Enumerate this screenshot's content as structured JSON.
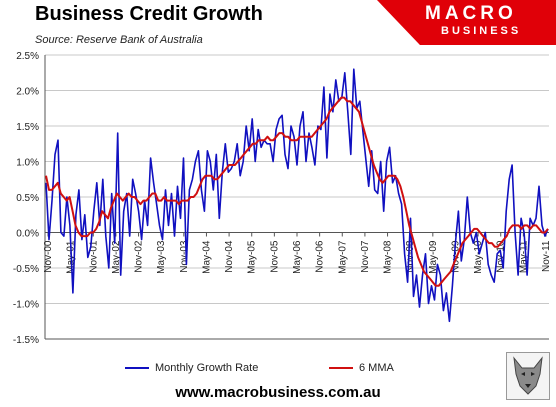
{
  "header": {
    "title": "Business Credit Growth",
    "subtitle": "Source: Reserve Bank of Australia",
    "logo_line1": "MACRO",
    "logo_line2": "BUSINESS"
  },
  "footer": {
    "url": "www.macrobusiness.com.au"
  },
  "colors": {
    "monthly": "#1010c0",
    "mma": "#d01010",
    "logo_red": "#e00008"
  },
  "chart_data": {
    "type": "line",
    "ylim": [
      -1.5,
      2.5
    ],
    "yticks": [
      "-1.5%",
      "-1.0%",
      "-0.5%",
      "0.0%",
      "0.5%",
      "1.0%",
      "1.5%",
      "2.0%",
      "2.5%"
    ],
    "grid": true,
    "legend_position": "bottom",
    "x_tick_labels": [
      "Nov-00",
      "May-01",
      "Nov-01",
      "May-02",
      "Nov-02",
      "May-03",
      "Nov-03",
      "May-04",
      "Nov-04",
      "May-05",
      "Nov-05",
      "May-06",
      "Nov-06",
      "May-07",
      "Nov-07",
      "May-08",
      "Nov-08",
      "May-09",
      "Nov-09",
      "May-10",
      "Nov-10",
      "May-11",
      "Nov-11"
    ],
    "series": [
      {
        "name": "Monthly Growth Rate",
        "color": "#1010c0",
        "values": [
          0.7,
          -0.1,
          0.45,
          1.1,
          1.3,
          0.0,
          -0.05,
          0.5,
          0.1,
          -0.85,
          0.25,
          0.6,
          -0.1,
          0.25,
          -0.35,
          -0.2,
          0.3,
          0.7,
          0.1,
          0.75,
          -0.05,
          -0.5,
          0.55,
          -0.15,
          1.4,
          -0.6,
          0.3,
          0.55,
          -0.05,
          0.75,
          0.55,
          0.3,
          -0.1,
          0.45,
          0.1,
          1.05,
          0.7,
          0.4,
          0.1,
          -0.1,
          0.6,
          0.1,
          0.55,
          -0.05,
          0.65,
          0.2,
          1.05,
          -0.45,
          0.6,
          0.75,
          1.0,
          1.15,
          0.6,
          0.3,
          1.15,
          1.0,
          0.6,
          1.1,
          0.2,
          0.85,
          1.25,
          0.85,
          0.9,
          1.0,
          1.25,
          0.8,
          1.0,
          1.5,
          1.15,
          1.6,
          1.0,
          1.45,
          1.2,
          1.3,
          1.25,
          1.25,
          1.0,
          1.45,
          1.6,
          1.65,
          1.1,
          0.9,
          1.5,
          1.35,
          0.95,
          1.5,
          1.7,
          1.0,
          1.4,
          1.2,
          0.95,
          1.5,
          1.45,
          2.05,
          1.05,
          1.95,
          1.7,
          2.15,
          1.85,
          1.9,
          2.25,
          1.7,
          1.1,
          2.3,
          1.75,
          1.85,
          1.45,
          1.05,
          0.65,
          1.15,
          0.6,
          0.55,
          1.0,
          0.3,
          1.0,
          1.2,
          0.7,
          0.8,
          0.55,
          0.4,
          -0.3,
          -0.7,
          0.2,
          -0.9,
          -0.6,
          -1.05,
          -0.6,
          -0.3,
          -1.0,
          -0.75,
          -0.95,
          -0.45,
          -0.6,
          -1.1,
          -0.85,
          -1.25,
          -0.75,
          -0.15,
          0.3,
          -0.4,
          -0.1,
          0.5,
          0.0,
          -0.15,
          0.0,
          -0.3,
          -0.15,
          0.0,
          -0.45,
          -0.6,
          -0.7,
          -0.3,
          -0.25,
          -0.5,
          0.3,
          0.75,
          0.95,
          0.0,
          -0.6,
          0.2,
          0.0,
          -0.6,
          0.2,
          0.1,
          0.2,
          0.65,
          0.1,
          -0.05,
          0.05
        ]
      },
      {
        "name": "6 MMA",
        "color": "#d01010",
        "values": [
          0.8,
          0.6,
          0.6,
          0.65,
          0.7,
          0.55,
          0.5,
          0.45,
          0.5,
          0.3,
          0.1,
          0.0,
          -0.05,
          -0.05,
          -0.05,
          0.0,
          0.0,
          0.05,
          0.15,
          0.3,
          0.25,
          0.2,
          0.35,
          0.45,
          0.55,
          0.5,
          0.45,
          0.5,
          0.55,
          0.5,
          0.5,
          0.45,
          0.4,
          0.45,
          0.45,
          0.5,
          0.55,
          0.55,
          0.45,
          0.45,
          0.5,
          0.45,
          0.45,
          0.45,
          0.45,
          0.4,
          0.45,
          0.45,
          0.45,
          0.5,
          0.5,
          0.55,
          0.65,
          0.75,
          0.8,
          0.8,
          0.8,
          0.75,
          0.75,
          0.8,
          0.85,
          0.9,
          0.95,
          0.95,
          0.95,
          1.0,
          1.05,
          1.1,
          1.15,
          1.2,
          1.25,
          1.25,
          1.3,
          1.3,
          1.3,
          1.35,
          1.3,
          1.3,
          1.35,
          1.4,
          1.4,
          1.35,
          1.35,
          1.3,
          1.3,
          1.3,
          1.35,
          1.35,
          1.35,
          1.35,
          1.35,
          1.4,
          1.45,
          1.5,
          1.55,
          1.6,
          1.7,
          1.75,
          1.8,
          1.85,
          1.9,
          1.9,
          1.85,
          1.85,
          1.8,
          1.75,
          1.7,
          1.55,
          1.4,
          1.25,
          1.1,
          0.95,
          0.85,
          0.75,
          0.7,
          0.75,
          0.8,
          0.8,
          0.8,
          0.75,
          0.65,
          0.5,
          0.3,
          0.1,
          -0.05,
          -0.2,
          -0.35,
          -0.45,
          -0.55,
          -0.6,
          -0.65,
          -0.7,
          -0.75,
          -0.75,
          -0.7,
          -0.65,
          -0.6,
          -0.55,
          -0.45,
          -0.35,
          -0.25,
          -0.15,
          -0.1,
          -0.05,
          0.0,
          0.05,
          0.05,
          0.0,
          -0.05,
          -0.1,
          -0.15,
          -0.15,
          -0.2,
          -0.2,
          -0.15,
          -0.1,
          -0.05,
          0.05,
          0.1,
          0.1,
          0.1,
          0.05,
          0.1,
          0.1,
          0.05,
          0.1,
          0.1,
          0.05,
          0.0,
          0.0,
          0.05
        ]
      }
    ]
  }
}
